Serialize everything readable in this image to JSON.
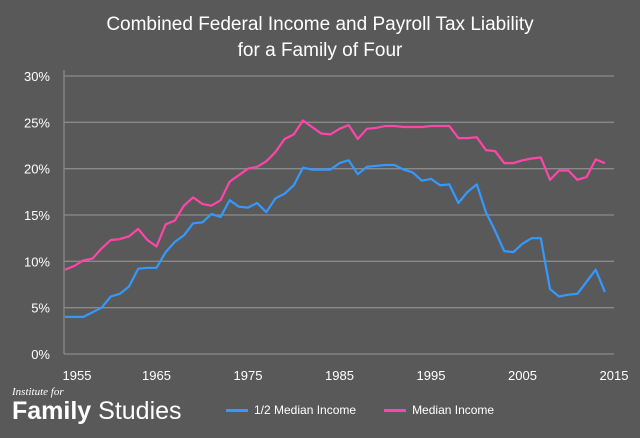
{
  "chart_data": {
    "type": "line",
    "title": [
      "Combined Federal Income and Payroll Tax Liability",
      "for a Family of Four"
    ],
    "xlabel": "",
    "ylabel": "",
    "x_start": 1955,
    "x_end": 2014,
    "xticks": [
      "1955",
      "1965",
      "1975",
      "1985",
      "1995",
      "2005",
      "2015"
    ],
    "yticks": [
      "0%",
      "5%",
      "10%",
      "15%",
      "20%",
      "25%",
      "30%"
    ],
    "ylim": [
      0,
      30
    ],
    "grid": true,
    "legend_position": "bottom",
    "series": [
      {
        "name": "1/2 Median Income",
        "color": "#3399ff",
        "values": [
          4.0,
          4.0,
          4.0,
          4.5,
          5.0,
          6.2,
          6.5,
          7.3,
          9.2,
          9.3,
          9.3,
          11.0,
          12.1,
          12.8,
          14.1,
          14.2,
          15.1,
          14.8,
          16.6,
          15.9,
          15.8,
          16.3,
          15.3,
          16.8,
          17.3,
          18.2,
          20.1,
          19.9,
          19.9,
          19.9,
          20.6,
          20.9,
          19.4,
          20.2,
          20.3,
          20.4,
          20.4,
          19.9,
          19.6,
          18.7,
          18.9,
          18.2,
          18.3,
          16.3,
          17.5,
          18.3,
          15.3,
          13.3,
          11.1,
          11.0,
          11.9,
          12.5,
          12.5,
          7.0,
          6.2,
          6.4,
          6.5,
          7.8,
          9.1,
          6.7
        ]
      },
      {
        "name": "Median Income",
        "color": "#ff44aa",
        "values": [
          9.1,
          9.5,
          10.1,
          10.3,
          11.4,
          12.3,
          12.4,
          12.7,
          13.5,
          12.3,
          11.6,
          14.0,
          14.4,
          16.0,
          16.9,
          16.2,
          16.0,
          16.6,
          18.6,
          19.3,
          20.0,
          20.2,
          20.8,
          21.8,
          23.2,
          23.7,
          25.2,
          24.5,
          23.8,
          23.7,
          24.3,
          24.7,
          23.2,
          24.3,
          24.4,
          24.6,
          24.6,
          24.5,
          24.5,
          24.5,
          24.6,
          24.6,
          24.6,
          23.3,
          23.3,
          23.4,
          22.0,
          21.9,
          20.6,
          20.6,
          20.9,
          21.1,
          21.2,
          18.8,
          19.8,
          19.8,
          18.8,
          19.1,
          21.0,
          20.6
        ]
      }
    ]
  },
  "logo": {
    "line1": "Institute for",
    "line2a": "Family",
    "line2b": " Studies"
  }
}
